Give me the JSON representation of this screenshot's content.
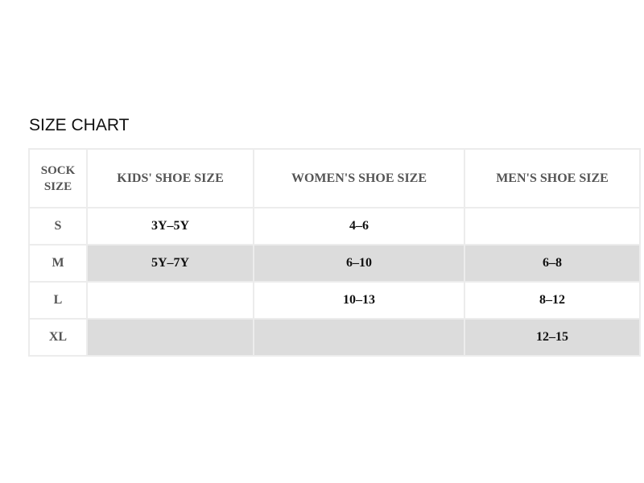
{
  "title": "SIZE CHART",
  "headers": [
    "SOCK SIZE",
    "KIDS' SHOE SIZE",
    "WOMEN'S SHOE SIZE",
    "MEN'S SHOE SIZE"
  ],
  "rows": [
    [
      "S",
      "3Y–5Y",
      "4–6",
      ""
    ],
    [
      "M",
      "5Y–7Y",
      "6–10",
      "6–8"
    ],
    [
      "L",
      "",
      "10–13",
      "8–12"
    ],
    [
      "XL",
      "",
      "",
      "12–15"
    ]
  ],
  "colors": {
    "alt_row": "#dcdcdc",
    "header_text": "#555555",
    "border": "#ececec"
  }
}
